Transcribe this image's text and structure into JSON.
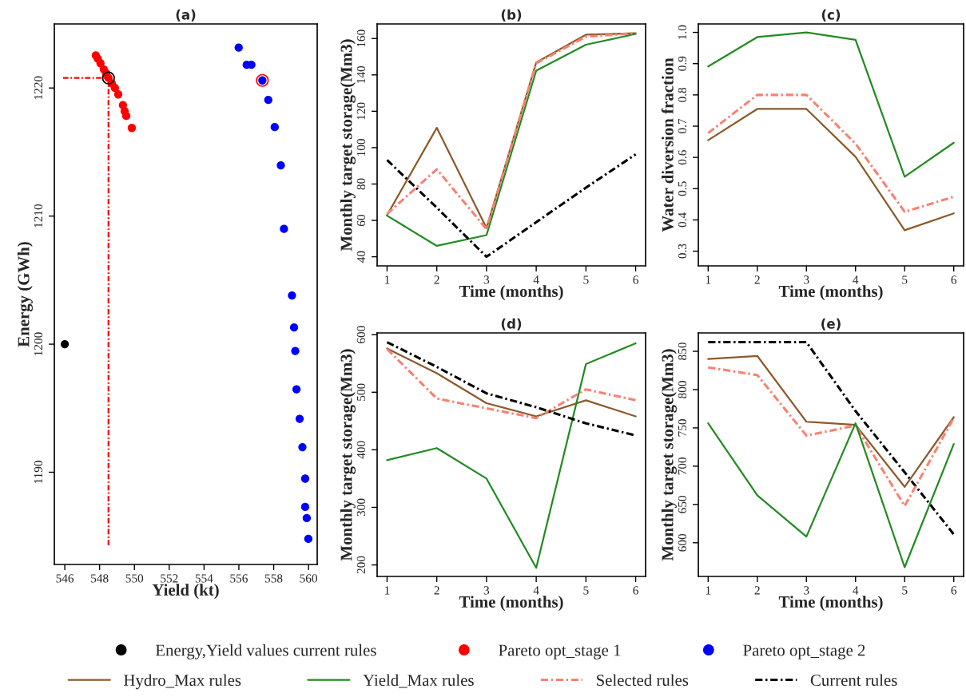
{
  "chart_data": [
    {
      "type": "scatter",
      "title": "(a)",
      "xlabel": "Yield (kt)",
      "ylabel": "Energy (GWh)",
      "xlim": [
        545.4,
        560.5
      ],
      "ylim": [
        1182.8,
        1225.0
      ],
      "xticks": [
        546,
        548,
        550,
        552,
        554,
        556,
        558,
        560
      ],
      "yticks": [
        1190,
        1200,
        1210,
        1220
      ],
      "marker": "circle",
      "legend": "bottom",
      "series": [
        {
          "name": "Energy,Yield values current rules",
          "color": "#000000",
          "x": [
            546.0
          ],
          "values": [
            1200.0
          ]
        },
        {
          "name": "Pareto opt_stage 1",
          "color": "#ff0000",
          "x": [
            547.78,
            547.89,
            548.05,
            548.24,
            548.38,
            548.51,
            548.7,
            548.88,
            549.07,
            549.34,
            549.44,
            549.53,
            549.85
          ],
          "values": [
            1222.55,
            1222.3,
            1221.93,
            1221.46,
            1221.15,
            1220.78,
            1220.37,
            1220.0,
            1219.5,
            1218.66,
            1218.19,
            1217.82,
            1216.88
          ]
        },
        {
          "name": "Pareto opt_stage 2",
          "color": "#0000ff",
          "x": [
            555.99,
            556.45,
            556.72,
            557.35,
            557.69,
            558.06,
            558.41,
            558.59,
            559.05,
            559.17,
            559.24,
            559.31,
            559.49,
            559.65,
            559.81,
            559.81,
            559.9,
            559.99
          ],
          "values": [
            1223.15,
            1221.81,
            1221.81,
            1220.59,
            1219.07,
            1216.95,
            1213.96,
            1209.0,
            1203.8,
            1201.31,
            1199.47,
            1196.48,
            1194.17,
            1191.96,
            1189.5,
            1187.29,
            1186.42,
            1184.8
          ]
        },
        {
          "color": "#000000",
          "x": [
            548.51
          ],
          "values": [
            1220.78
          ]
        },
        {
          "color": "#ff0000",
          "x": [
            557.35
          ],
          "values": [
            1220.59
          ]
        },
        {
          "type": "line",
          "color": "#ff0000",
          "line_style": "dashed",
          "marker": "none",
          "x": [
            545.9,
            548.51
          ],
          "values": [
            1220.78,
            1220.78
          ]
        },
        {
          "type": "line",
          "color": "#ff0000",
          "line_style": "dashed",
          "marker": "none",
          "x": [
            548.51,
            548.51
          ],
          "values": [
            1220.78,
            1184.3
          ]
        }
      ]
    },
    {
      "type": "line",
      "title": "(b)",
      "xlabel": "Time (months)",
      "ylabel": "Monthly target storage(Mm3)",
      "x": [
        1,
        2,
        3,
        4,
        5,
        6
      ],
      "xlim": [
        0.8,
        6.2
      ],
      "ylim": [
        35,
        168
      ],
      "xticks": [
        1,
        2,
        3,
        4,
        5,
        6
      ],
      "yticks": [
        40,
        60,
        80,
        100,
        120,
        140,
        160
      ],
      "legend": "bottom",
      "series": [
        {
          "name": "Hydro_Max rules",
          "color": "#8b5a2b",
          "line_style": "solid",
          "values": [
            62.9,
            110.9,
            55.8,
            146.8,
            162.1,
            162.9
          ]
        },
        {
          "name": "Yield_Max rules",
          "color": "#228b22",
          "line_style": "solid",
          "values": [
            62.6,
            46.0,
            51.9,
            142.3,
            156.6,
            162.5
          ]
        },
        {
          "name": "Selected rules",
          "color": "#fa8072",
          "line_style": "dashed",
          "values": [
            63.6,
            88.1,
            55.2,
            146.4,
            161.0,
            162.9
          ]
        },
        {
          "name": "Current rules",
          "color": "#000000",
          "line_style": "dashed",
          "values": [
            93.2,
            67.0,
            40.0,
            59.0,
            78.0,
            96.3
          ]
        }
      ]
    },
    {
      "type": "line",
      "title": "(c)",
      "xlabel": "Time (months)",
      "ylabel": "Water diversion fraction",
      "x": [
        1,
        2,
        3,
        4,
        5,
        6
      ],
      "xlim": [
        0.8,
        6.2
      ],
      "ylim": [
        0.253,
        1.027
      ],
      "xticks": [
        1,
        2,
        3,
        4,
        5,
        6
      ],
      "yticks": [
        0.3,
        0.4,
        0.5,
        0.6,
        0.7,
        0.8,
        0.9,
        {
          "value": 1.0,
          "label": "1.0"
        }
      ],
      "series": [
        {
          "color": "#228b22",
          "line_style": "solid",
          "values": [
            0.891,
            0.985,
            1.0,
            0.976,
            0.538,
            0.647
          ]
        },
        {
          "color": "#fa8072",
          "line_style": "dashed",
          "values": [
            0.678,
            0.8,
            0.8,
            0.644,
            0.426,
            0.474
          ]
        },
        {
          "color": "#8b5a2b",
          "line_style": "solid",
          "values": [
            0.655,
            0.755,
            0.755,
            0.602,
            0.367,
            0.421
          ]
        }
      ]
    },
    {
      "type": "line",
      "title": "(d)",
      "xlabel": "Time (months)",
      "ylabel": "Monthly target storage(Mm3)",
      "x": [
        1,
        2,
        3,
        4,
        5,
        6
      ],
      "xlim": [
        0.8,
        6.2
      ],
      "ylim": [
        180,
        603
      ],
      "xticks": [
        1,
        2,
        3,
        4,
        5,
        6
      ],
      "yticks": [
        200,
        300,
        400,
        500,
        600
      ],
      "series": [
        {
          "color": "#8b5a2b",
          "line_style": "solid",
          "values": [
            576,
            533,
            481,
            458,
            486,
            458
          ]
        },
        {
          "color": "#228b22",
          "line_style": "solid",
          "values": [
            382,
            403,
            350,
            195,
            549,
            585
          ]
        },
        {
          "color": "#fa8072",
          "line_style": "dashed",
          "values": [
            575,
            489,
            472,
            455,
            505,
            486
          ]
        },
        {
          "color": "#000000",
          "line_style": "dashed",
          "values": [
            587,
            544,
            498,
            474,
            446,
            425
          ]
        }
      ]
    },
    {
      "type": "line",
      "title": "(e)",
      "xlabel": "Time (months)",
      "ylabel": "Monthly target storage(Mm3)",
      "x": [
        1,
        2,
        3,
        4,
        5,
        6
      ],
      "xlim": [
        0.8,
        6.2
      ],
      "ylim": [
        556,
        874
      ],
      "xticks": [
        1,
        2,
        3,
        4,
        5,
        6
      ],
      "yticks": [
        600,
        650,
        700,
        750,
        800,
        850
      ],
      "series": [
        {
          "color": "#000000",
          "line_style": "dashed",
          "values": [
            862,
            862,
            862,
            772,
            692,
            611
          ]
        },
        {
          "color": "#8b5a2b",
          "line_style": "solid",
          "values": [
            840,
            844,
            758,
            754,
            673,
            764
          ]
        },
        {
          "color": "#fa8072",
          "line_style": "dashed",
          "values": [
            829,
            819,
            740,
            753,
            648,
            763
          ]
        },
        {
          "color": "#228b22",
          "line_style": "solid",
          "values": [
            756,
            662,
            608,
            756,
            568,
            729
          ]
        }
      ]
    }
  ]
}
